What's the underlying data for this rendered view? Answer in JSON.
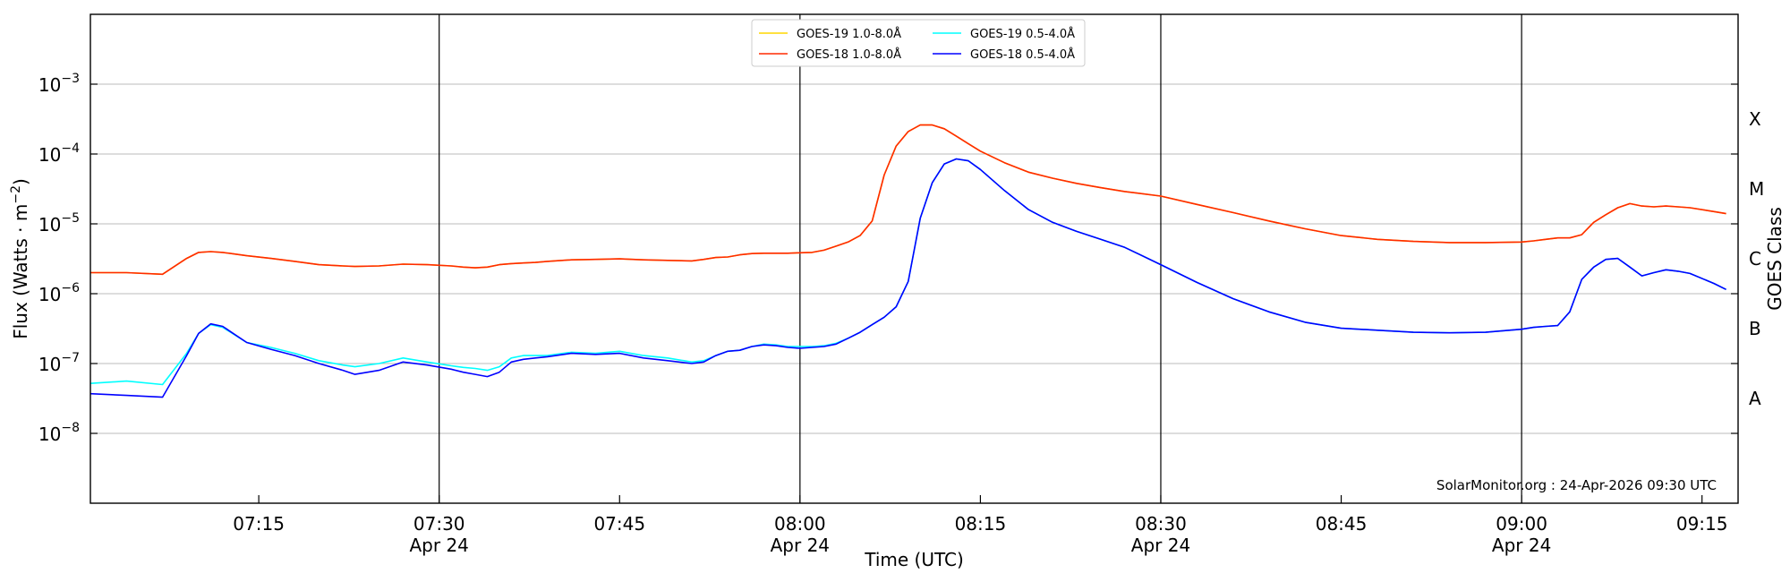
{
  "chart_data": {
    "type": "line",
    "xlabel": "Time (UTC)",
    "ylabel_main": "Flux (Watts · m",
    "ylabel_sup": "−2",
    "ylabel_close": ")",
    "ylabel_right": "GOES Class",
    "yscale": "log",
    "ylim": [
      1e-09,
      0.01
    ],
    "xlim": [
      "2026-04-24 07:01",
      "2026-04-24 09:18"
    ],
    "y_ticks": [
      {
        "value": 1e-08,
        "base": "10",
        "exp": "−8"
      },
      {
        "value": 1e-07,
        "base": "10",
        "exp": "−7"
      },
      {
        "value": 1e-06,
        "base": "10",
        "exp": "−6"
      },
      {
        "value": 1e-05,
        "base": "10",
        "exp": "−5"
      },
      {
        "value": 0.0001,
        "base": "10",
        "exp": "−4"
      },
      {
        "value": 0.001,
        "base": "10",
        "exp": "−3"
      }
    ],
    "x_ticks": [
      {
        "time": "2026-04-24 07:15",
        "label": "07:15",
        "sub": ""
      },
      {
        "time": "2026-04-24 07:30",
        "label": "07:30",
        "sub": "Apr 24"
      },
      {
        "time": "2026-04-24 07:45",
        "label": "07:45",
        "sub": ""
      },
      {
        "time": "2026-04-24 08:00",
        "label": "08:00",
        "sub": "Apr 24"
      },
      {
        "time": "2026-04-24 08:15",
        "label": "08:15",
        "sub": ""
      },
      {
        "time": "2026-04-24 08:30",
        "label": "08:30",
        "sub": "Apr 24"
      },
      {
        "time": "2026-04-24 08:45",
        "label": "08:45",
        "sub": ""
      },
      {
        "time": "2026-04-24 09:00",
        "label": "09:00",
        "sub": "Apr 24"
      },
      {
        "time": "2026-04-24 09:15",
        "label": "09:15",
        "sub": ""
      }
    ],
    "vertical_lines": [
      "2026-04-24 07:30",
      "2026-04-24 08:00",
      "2026-04-24 08:30",
      "2026-04-24 09:00"
    ],
    "goes_classes": [
      {
        "label": "A",
        "value": 3.16e-08
      },
      {
        "label": "B",
        "value": 3.16e-07
      },
      {
        "label": "C",
        "value": 3.16e-06
      },
      {
        "label": "M",
        "value": 3.16e-05
      },
      {
        "label": "X",
        "value": 0.000316
      }
    ],
    "grid": "horizontal",
    "legend_position": "top-center",
    "credit": "SolarMonitor.org : 24-Apr-2026 09:30 UTC",
    "x": [
      "07:01",
      "07:04",
      "07:07",
      "07:09",
      "07:10",
      "07:11",
      "07:12",
      "07:14",
      "07:16",
      "07:18",
      "07:20",
      "07:22",
      "07:23",
      "07:25",
      "07:27",
      "07:29",
      "07:31",
      "07:32",
      "07:33",
      "07:34",
      "07:35",
      "07:36",
      "07:37",
      "07:38",
      "07:39",
      "07:41",
      "07:43",
      "07:45",
      "07:47",
      "07:49",
      "07:51",
      "07:52",
      "07:53",
      "07:54",
      "07:55",
      "07:56",
      "07:57",
      "07:58",
      "07:59",
      "08:00",
      "08:01",
      "08:02",
      "08:03",
      "08:04",
      "08:05",
      "08:06",
      "08:07",
      "08:08",
      "08:09",
      "08:10",
      "08:11",
      "08:12",
      "08:13",
      "08:14",
      "08:15",
      "08:17",
      "08:19",
      "08:21",
      "08:23",
      "08:25",
      "08:27",
      "08:30",
      "08:33",
      "08:36",
      "08:39",
      "08:42",
      "08:45",
      "08:48",
      "08:51",
      "08:54",
      "08:57",
      "09:00",
      "09:01",
      "09:02",
      "09:03",
      "09:04",
      "09:05",
      "09:06",
      "09:07",
      "09:08",
      "09:09",
      "09:10",
      "09:11",
      "09:12",
      "09:13",
      "09:14",
      "09:16",
      "09:17"
    ],
    "series": [
      {
        "name": "GOES-19 1.0-8.0Å",
        "color": "#ffd700",
        "values": [
          2e-06,
          2e-06,
          1.9e-06,
          3.2e-06,
          3.9e-06,
          4e-06,
          3.9e-06,
          3.5e-06,
          3.2e-06,
          2.9e-06,
          2.6e-06,
          2.5e-06,
          2.45e-06,
          2.5e-06,
          2.65e-06,
          2.6e-06,
          2.5e-06,
          2.4e-06,
          2.35e-06,
          2.4e-06,
          2.6e-06,
          2.7e-06,
          2.75e-06,
          2.8e-06,
          2.9e-06,
          3.05e-06,
          3.1e-06,
          3.15e-06,
          3.05e-06,
          3e-06,
          2.95e-06,
          3.1e-06,
          3.3e-06,
          3.35e-06,
          3.6e-06,
          3.75e-06,
          3.8e-06,
          3.8e-06,
          3.8e-06,
          3.85e-06,
          3.9e-06,
          4.2e-06,
          4.8e-06,
          5.5e-06,
          6.8e-06,
          1.1e-05,
          5e-05,
          0.00013,
          0.00021,
          0.00026,
          0.00026,
          0.00023,
          0.00018,
          0.00014,
          0.00011,
          7.5e-05,
          5.5e-05,
          4.5e-05,
          3.8e-05,
          3.3e-05,
          2.9e-05,
          2.5e-05,
          1.9e-05,
          1.45e-05,
          1.1e-05,
          8.5e-06,
          6.8e-06,
          6e-06,
          5.6e-06,
          5.4e-06,
          5.4e-06,
          5.5e-06,
          5.7e-06,
          6e-06,
          6.3e-06,
          6.3e-06,
          7e-06,
          1.05e-05,
          1.35e-05,
          1.7e-05,
          1.95e-05,
          1.8e-05,
          1.75e-05,
          1.8e-05,
          1.75e-05,
          1.7e-05,
          1.5e-05,
          1.4e-05
        ]
      },
      {
        "name": "GOES-18 1.0-8.0Å",
        "color": "#ff2a00",
        "values": [
          2e-06,
          2e-06,
          1.9e-06,
          3.2e-06,
          3.9e-06,
          4e-06,
          3.9e-06,
          3.5e-06,
          3.2e-06,
          2.9e-06,
          2.6e-06,
          2.5e-06,
          2.45e-06,
          2.5e-06,
          2.65e-06,
          2.6e-06,
          2.5e-06,
          2.4e-06,
          2.35e-06,
          2.4e-06,
          2.6e-06,
          2.7e-06,
          2.75e-06,
          2.8e-06,
          2.9e-06,
          3.05e-06,
          3.1e-06,
          3.15e-06,
          3.05e-06,
          3e-06,
          2.95e-06,
          3.1e-06,
          3.3e-06,
          3.35e-06,
          3.6e-06,
          3.75e-06,
          3.8e-06,
          3.8e-06,
          3.8e-06,
          3.85e-06,
          3.9e-06,
          4.2e-06,
          4.8e-06,
          5.5e-06,
          6.8e-06,
          1.1e-05,
          5e-05,
          0.00013,
          0.00021,
          0.00026,
          0.00026,
          0.00023,
          0.00018,
          0.00014,
          0.00011,
          7.5e-05,
          5.5e-05,
          4.5e-05,
          3.8e-05,
          3.3e-05,
          2.9e-05,
          2.5e-05,
          1.9e-05,
          1.45e-05,
          1.1e-05,
          8.5e-06,
          6.8e-06,
          6e-06,
          5.6e-06,
          5.4e-06,
          5.4e-06,
          5.5e-06,
          5.7e-06,
          6e-06,
          6.3e-06,
          6.3e-06,
          7e-06,
          1.05e-05,
          1.35e-05,
          1.7e-05,
          1.95e-05,
          1.8e-05,
          1.75e-05,
          1.8e-05,
          1.75e-05,
          1.7e-05,
          1.5e-05,
          1.4e-05
        ]
      },
      {
        "name": "GOES-19 0.5-4.0Å",
        "color": "#00ffff",
        "values": [
          5.2e-08,
          5.6e-08,
          5e-08,
          1.4e-07,
          2.7e-07,
          3.6e-07,
          3.3e-07,
          2e-07,
          1.7e-07,
          1.4e-07,
          1.1e-07,
          9.5e-08,
          9e-08,
          1e-07,
          1.2e-07,
          1.05e-07,
          9.3e-08,
          8.8e-08,
          8.5e-08,
          8e-08,
          9e-08,
          1.2e-07,
          1.3e-07,
          1.3e-07,
          1.3e-07,
          1.45e-07,
          1.4e-07,
          1.5e-07,
          1.3e-07,
          1.2e-07,
          1.05e-07,
          1.1e-07,
          1.3e-07,
          1.5e-07,
          1.55e-07,
          1.75e-07,
          1.9e-07,
          1.85e-07,
          1.75e-07,
          1.75e-07,
          1.75e-07,
          1.8e-07,
          1.95e-07,
          2.3e-07,
          2.8e-07,
          3.6e-07,
          4.6e-07,
          6.5e-07,
          1.5e-06,
          1.2e-05,
          3.9e-05,
          7.2e-05,
          8.5e-05,
          8e-05,
          6e-05,
          3e-05,
          1.6e-05,
          1.05e-05,
          7.8e-06,
          6e-06,
          4.6e-06,
          2.6e-06,
          1.45e-06,
          8.5e-07,
          5.5e-07,
          3.9e-07,
          3.2e-07,
          3e-07,
          2.8e-07,
          2.75e-07,
          2.8e-07,
          3.1e-07,
          3.3e-07,
          3.4e-07,
          3.5e-07,
          5.5e-07,
          1.6e-06,
          2.4e-06,
          3.1e-06,
          3.2e-06,
          2.4e-06,
          1.8e-06,
          2e-06,
          2.2e-06,
          2.1e-06,
          1.95e-06,
          1.4e-06,
          1.15e-06
        ]
      },
      {
        "name": "GOES-18 0.5-4.0Å",
        "color": "#0000ff",
        "values": [
          3.7e-08,
          3.5e-08,
          3.3e-08,
          1.3e-07,
          2.7e-07,
          3.7e-07,
          3.4e-07,
          2e-07,
          1.6e-07,
          1.3e-07,
          1e-07,
          8e-08,
          7e-08,
          8e-08,
          1.05e-07,
          9.5e-08,
          8.3e-08,
          7.5e-08,
          7e-08,
          6.5e-08,
          7.5e-08,
          1.05e-07,
          1.15e-07,
          1.2e-07,
          1.25e-07,
          1.4e-07,
          1.35e-07,
          1.4e-07,
          1.2e-07,
          1.1e-07,
          1e-07,
          1.05e-07,
          1.3e-07,
          1.5e-07,
          1.55e-07,
          1.75e-07,
          1.85e-07,
          1.8e-07,
          1.7e-07,
          1.65e-07,
          1.7e-07,
          1.75e-07,
          1.9e-07,
          2.3e-07,
          2.8e-07,
          3.6e-07,
          4.6e-07,
          6.5e-07,
          1.5e-06,
          1.2e-05,
          3.9e-05,
          7.2e-05,
          8.5e-05,
          8e-05,
          6e-05,
          3e-05,
          1.6e-05,
          1.05e-05,
          7.8e-06,
          6e-06,
          4.6e-06,
          2.6e-06,
          1.45e-06,
          8.5e-07,
          5.5e-07,
          3.9e-07,
          3.2e-07,
          3e-07,
          2.8e-07,
          2.75e-07,
          2.8e-07,
          3.1e-07,
          3.3e-07,
          3.4e-07,
          3.5e-07,
          5.5e-07,
          1.6e-06,
          2.4e-06,
          3.1e-06,
          3.2e-06,
          2.4e-06,
          1.8e-06,
          2e-06,
          2.2e-06,
          2.1e-06,
          1.95e-06,
          1.4e-06,
          1.15e-06
        ]
      }
    ]
  }
}
